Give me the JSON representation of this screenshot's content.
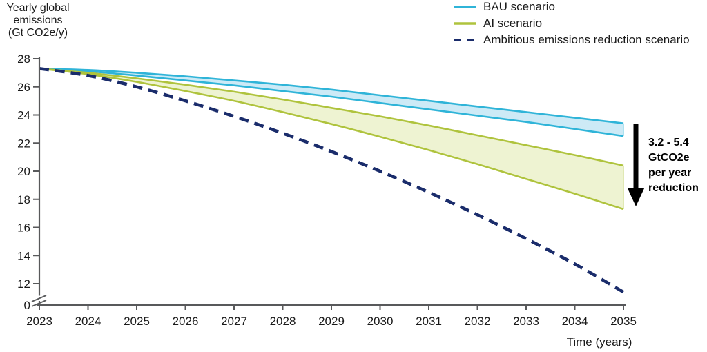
{
  "figure": {
    "y_axis_title_lines": [
      "Yearly global",
      "emissions",
      "(Gt CO2e/y)"
    ],
    "x_axis_title": "Time (years)",
    "legend": [
      {
        "label": "BAU scenario",
        "color": "#2fb4d8",
        "style": "solid"
      },
      {
        "label": "AI scenario",
        "color": "#afc33d",
        "style": "solid"
      },
      {
        "label": "Ambitious emissions reduction scenario",
        "color": "#1a2c6b",
        "style": "dashed"
      }
    ],
    "annotation": {
      "lines": [
        "3.2 - 5.4",
        "GtCO2e",
        "per year",
        "reduction"
      ],
      "arrow_color": "#000000"
    }
  },
  "chart_data": {
    "type": "area",
    "title": "",
    "xlabel": "Time (years)",
    "ylabel": "Yearly global emissions (Gt CO2e/y)",
    "grid": false,
    "legend_position": "top-right",
    "ylim": [
      0,
      28
    ],
    "y_axis_break_between": [
      0,
      12
    ],
    "x": [
      2023,
      2024,
      2025,
      2026,
      2027,
      2028,
      2029,
      2030,
      2031,
      2032,
      2033,
      2034,
      2035
    ],
    "x_ticks": [
      2023,
      2024,
      2025,
      2026,
      2027,
      2028,
      2029,
      2030,
      2031,
      2032,
      2033,
      2034,
      2035
    ],
    "y_ticks": [
      28,
      26,
      24,
      22,
      20,
      18,
      16,
      14,
      12,
      0
    ],
    "axis_color": "#58595b",
    "bands": [
      {
        "name": "BAU scenario",
        "stroke": "#2fb4d8",
        "fill": "#cdeaf6",
        "upper": [
          27.3,
          27.2,
          27.0,
          26.75,
          26.45,
          26.15,
          25.8,
          25.4,
          25.0,
          24.6,
          24.2,
          23.8,
          23.4
        ],
        "lower": [
          27.3,
          27.1,
          26.8,
          26.45,
          26.1,
          25.7,
          25.3,
          24.85,
          24.4,
          23.95,
          23.5,
          23.0,
          22.5
        ]
      },
      {
        "name": "AI scenario",
        "stroke": "#afc33d",
        "fill": "#eef3d2",
        "upper": [
          27.3,
          27.0,
          26.6,
          26.15,
          25.65,
          25.1,
          24.5,
          23.9,
          23.25,
          22.55,
          21.85,
          21.15,
          20.4
        ],
        "lower": [
          27.3,
          26.9,
          26.35,
          25.7,
          25.0,
          24.2,
          23.35,
          22.45,
          21.5,
          20.5,
          19.45,
          18.4,
          17.3
        ]
      }
    ],
    "lines": [
      {
        "name": "Ambitious emissions reduction scenario",
        "color": "#1a2c6b",
        "style": "dashed",
        "values": [
          27.3,
          26.8,
          26.0,
          25.0,
          23.9,
          22.7,
          21.4,
          20.0,
          18.5,
          16.9,
          15.2,
          13.4,
          11.4
        ]
      }
    ],
    "annotation": {
      "text": "3.2 - 5.4 GtCO2e per year reduction"
    }
  }
}
